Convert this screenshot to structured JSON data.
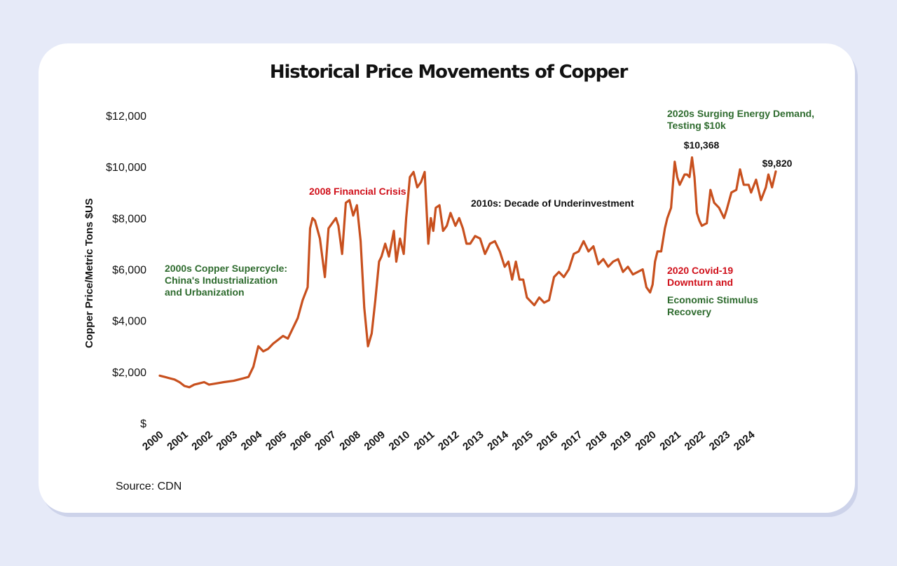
{
  "colors": {
    "background": "#e6eaf8",
    "card": "#ffffff",
    "line": "#c8501e",
    "green_annotation": "#2e6b2e",
    "red_annotation": "#d0101a",
    "black_annotation": "#111111"
  },
  "title": "Historical Price Movements of Copper",
  "source": "Source: CDN",
  "chart_data": {
    "type": "line",
    "title": "Historical Price Movements of Copper",
    "xlabel": "",
    "ylabel": "Copper Price/Metric Tons $US",
    "xlim": [
      2000,
      2025
    ],
    "ylim": [
      0,
      12000
    ],
    "grid": false,
    "legend": "none",
    "x_ticks": [
      "2000",
      "2001",
      "2002",
      "2003",
      "2004",
      "2005",
      "2006",
      "2007",
      "2008",
      "2009",
      "2010",
      "2011",
      "2012",
      "2013",
      "2014",
      "2015",
      "2016",
      "2017",
      "2018",
      "2019",
      "2020",
      "2021",
      "2022",
      "2023",
      "2024"
    ],
    "y_ticks": [
      {
        "value": 0,
        "label": "$"
      },
      {
        "value": 2000,
        "label": "$2,000"
      },
      {
        "value": 4000,
        "label": "$4,000"
      },
      {
        "value": 6000,
        "label": "$6,000"
      },
      {
        "value": 8000,
        "label": "$8,000"
      },
      {
        "value": 10000,
        "label": "$10,000"
      },
      {
        "value": 12000,
        "label": "$12,000"
      }
    ],
    "series": [
      {
        "x": [
          2000,
          2000.2,
          2000.4,
          2000.6,
          2000.8,
          2001,
          2001.2,
          2001.4,
          2001.6,
          2001.8,
          2002,
          2002.3,
          2002.6,
          2003,
          2003.2,
          2003.4,
          2003.6,
          2003.8,
          2004,
          2004.2,
          2004.4,
          2004.6,
          2004.8,
          2005,
          2005.2,
          2005.4,
          2005.6,
          2005.8,
          2006,
          2006.1,
          2006.2,
          2006.3,
          2006.5,
          2006.7,
          2006.85,
          2007,
          2007.15,
          2007.25,
          2007.4,
          2007.55,
          2007.7,
          2007.85,
          2008,
          2008.15,
          2008.3,
          2008.45,
          2008.6,
          2008.75,
          2008.9,
          2009,
          2009.15,
          2009.3,
          2009.5,
          2009.6,
          2009.75,
          2009.9,
          2010,
          2010.15,
          2010.3,
          2010.45,
          2010.6,
          2010.75,
          2010.9,
          2011,
          2011.1,
          2011.2,
          2011.35,
          2011.5,
          2011.65,
          2011.8,
          2012,
          2012.15,
          2012.3,
          2012.45,
          2012.6,
          2012.8,
          2013,
          2013.2,
          2013.4,
          2013.6,
          2013.8,
          2014,
          2014.15,
          2014.3,
          2014.45,
          2014.6,
          2014.75,
          2014.9,
          2015,
          2015.2,
          2015.4,
          2015.6,
          2015.8,
          2016,
          2016.2,
          2016.4,
          2016.6,
          2016.8,
          2017,
          2017.2,
          2017.4,
          2017.6,
          2017.8,
          2018,
          2018.2,
          2018.4,
          2018.6,
          2018.8,
          2019,
          2019.2,
          2019.4,
          2019.6,
          2019.75,
          2019.9,
          2020,
          2020.1,
          2020.2,
          2020.35,
          2020.5,
          2020.6,
          2020.75,
          2020.9,
          2021,
          2021.1,
          2021.2,
          2021.3,
          2021.4,
          2021.5,
          2021.6,
          2021.7,
          2021.8,
          2021.9,
          2022,
          2022.2,
          2022.35,
          2022.5,
          2022.7,
          2022.9,
          2023,
          2023.2,
          2023.4,
          2023.55,
          2023.7,
          2023.9,
          2024,
          2024.2,
          2024.4,
          2024.6,
          2024.7,
          2024.85,
          2025
        ],
        "y": [
          1850,
          1800,
          1750,
          1700,
          1600,
          1450,
          1400,
          1500,
          1550,
          1600,
          1500,
          1550,
          1600,
          1650,
          1700,
          1750,
          1800,
          2200,
          3000,
          2800,
          2900,
          3100,
          3250,
          3400,
          3300,
          3700,
          4100,
          4800,
          5300,
          7600,
          8000,
          7900,
          7200,
          5700,
          7600,
          7800,
          8000,
          7700,
          6600,
          8600,
          8700,
          8100,
          8500,
          7100,
          4500,
          3000,
          3500,
          4800,
          6300,
          6500,
          7000,
          6500,
          7500,
          6300,
          7200,
          6600,
          8000,
          9600,
          9800,
          9200,
          9400,
          9800,
          7000,
          8000,
          7500,
          8400,
          8500,
          7500,
          7700,
          8200,
          7700,
          8000,
          7600,
          7000,
          7000,
          7300,
          7200,
          6600,
          7000,
          7100,
          6700,
          6100,
          6300,
          5600,
          6300,
          5600,
          5600,
          4900,
          4800,
          4600,
          4900,
          4700,
          4800,
          5700,
          5900,
          5700,
          6000,
          6600,
          6700,
          7100,
          6700,
          6900,
          6200,
          6400,
          6100,
          6300,
          6400,
          5900,
          6100,
          5800,
          5900,
          6000,
          5300,
          5100,
          5400,
          6300,
          6700,
          6700,
          7600,
          8000,
          8400,
          10200,
          9600,
          9300,
          9500,
          9700,
          9700,
          9600,
          10368,
          9600,
          8200,
          7900,
          7700,
          7800,
          9100,
          8600,
          8400,
          8000,
          8300,
          9000,
          9100,
          9900,
          9300,
          9300,
          9000,
          9500,
          8700,
          9200,
          9700,
          9200,
          9820
        ]
      }
    ],
    "annotations": [
      {
        "text": [
          "2000s Copper Supercycle:",
          "China's Industrialization",
          "and Urbanization"
        ],
        "color": "green"
      },
      {
        "text": [
          "2008 Financial Crisis"
        ],
        "color": "red"
      },
      {
        "text": [
          "2010s: Decade of Underinvestment"
        ],
        "color": "black"
      },
      {
        "text": [
          "2020 Covid-19",
          "Downturn and"
        ],
        "color": "red"
      },
      {
        "text": [
          "Economic Stimulus",
          "Recovery"
        ],
        "color": "green"
      },
      {
        "text": [
          "2020s Surging Energy Demand,",
          "Testing $10k"
        ],
        "color": "green"
      }
    ],
    "value_labels": [
      {
        "x": 2021.4,
        "y": 10368,
        "text": "$10,368"
      },
      {
        "x": 2025,
        "y": 9820,
        "text": "$9,820"
      }
    ]
  }
}
